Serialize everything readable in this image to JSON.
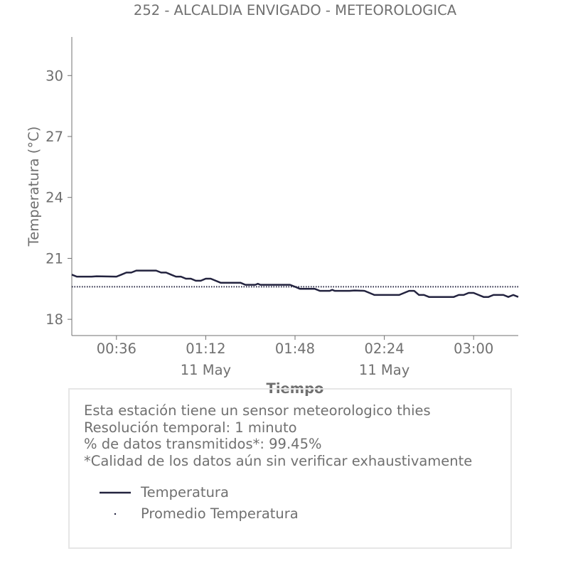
{
  "chart_data": {
    "type": "line",
    "title": "252 - ALCALDIA ENVIGADO - METEOROLOGICA",
    "xlabel": "Tiempo",
    "ylabel": "Temperatura (°C)",
    "ylim": [
      17.2,
      31.9
    ],
    "yticks": [
      "18",
      "21",
      "24",
      "27",
      "30"
    ],
    "xlim": [
      "00:18",
      "03:18"
    ],
    "xticks": [
      {
        "time": "00:36",
        "label": "00:36",
        "date": ""
      },
      {
        "time": "01:12",
        "label": "01:12",
        "date": "11 May"
      },
      {
        "time": "01:48",
        "label": "01:48",
        "date": ""
      },
      {
        "time": "02:24",
        "label": "02:24",
        "date": "11 May"
      },
      {
        "time": "03:00",
        "label": "03:00",
        "date": ""
      }
    ],
    "grid": false,
    "series": [
      {
        "name": "Temperatura",
        "style": "solid",
        "color": "#23233f",
        "points": [
          [
            "00:18",
            20.2
          ],
          [
            "00:20",
            20.1
          ],
          [
            "00:26",
            20.1
          ],
          [
            "00:28",
            20.12
          ],
          [
            "00:36",
            20.1
          ],
          [
            "00:38",
            20.2
          ],
          [
            "00:40",
            20.3
          ],
          [
            "00:42",
            20.3
          ],
          [
            "00:44",
            20.4
          ],
          [
            "00:52",
            20.4
          ],
          [
            "00:54",
            20.3
          ],
          [
            "00:56",
            20.3
          ],
          [
            "00:58",
            20.2
          ],
          [
            "01:00",
            20.1
          ],
          [
            "01:02",
            20.1
          ],
          [
            "01:04",
            20.0
          ],
          [
            "01:06",
            20.0
          ],
          [
            "01:08",
            19.9
          ],
          [
            "01:10",
            19.9
          ],
          [
            "01:12",
            20.0
          ],
          [
            "01:14",
            20.0
          ],
          [
            "01:16",
            19.9
          ],
          [
            "01:18",
            19.8
          ],
          [
            "01:26",
            19.8
          ],
          [
            "01:28",
            19.7
          ],
          [
            "01:32",
            19.7
          ],
          [
            "01:33",
            19.75
          ],
          [
            "01:34",
            19.7
          ],
          [
            "01:46",
            19.7
          ],
          [
            "01:48",
            19.6
          ],
          [
            "01:50",
            19.5
          ],
          [
            "01:56",
            19.5
          ],
          [
            "01:58",
            19.4
          ],
          [
            "02:02",
            19.4
          ],
          [
            "02:03",
            19.45
          ],
          [
            "02:04",
            19.4
          ],
          [
            "02:10",
            19.4
          ],
          [
            "02:12",
            19.42
          ],
          [
            "02:16",
            19.4
          ],
          [
            "02:18",
            19.3
          ],
          [
            "02:20",
            19.2
          ],
          [
            "02:30",
            19.2
          ],
          [
            "02:32",
            19.3
          ],
          [
            "02:34",
            19.4
          ],
          [
            "02:36",
            19.4
          ],
          [
            "02:38",
            19.2
          ],
          [
            "02:40",
            19.2
          ],
          [
            "02:42",
            19.1
          ],
          [
            "02:52",
            19.1
          ],
          [
            "02:54",
            19.2
          ],
          [
            "02:56",
            19.2
          ],
          [
            "02:58",
            19.3
          ],
          [
            "03:00",
            19.3
          ],
          [
            "03:02",
            19.2
          ],
          [
            "03:04",
            19.1
          ],
          [
            "03:06",
            19.1
          ],
          [
            "03:08",
            19.2
          ],
          [
            "03:12",
            19.2
          ],
          [
            "03:14",
            19.1
          ],
          [
            "03:16",
            19.2
          ],
          [
            "03:18",
            19.1
          ]
        ]
      },
      {
        "name": "Promedio Temperatura",
        "style": "dotted",
        "color": "#23233f",
        "points": [
          [
            "00:18",
            19.6
          ],
          [
            "03:18",
            19.6
          ]
        ]
      }
    ]
  },
  "info": {
    "line1": "Esta estación tiene un sensor meteorologico thies",
    "line2": "Resolución temporal: 1 minuto",
    "line3": "% de datos transmitidos*: 99.45%",
    "line4": "*Calidad de los datos aún sin verificar exhaustivamente"
  },
  "legend": {
    "items": [
      {
        "label": "Temperatura",
        "style": "solid",
        "color": "#23233f"
      },
      {
        "label": "Promedio Temperatura",
        "style": "dotted",
        "color": "#23233f"
      }
    ]
  }
}
